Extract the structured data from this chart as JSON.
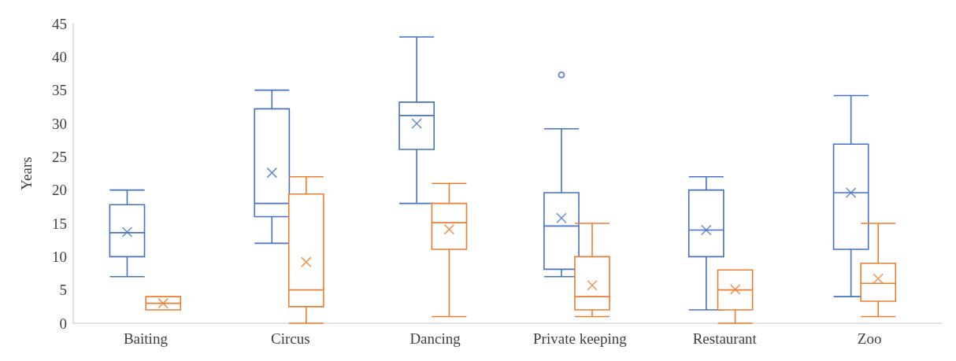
{
  "chart_data": {
    "type": "box",
    "ylabel": "Years",
    "categories": [
      "Baiting",
      "Circus",
      "Dancing",
      "Private keeping",
      "Restaurant",
      "Zoo"
    ],
    "ylim": [
      0,
      45
    ],
    "yticks": [
      0,
      5,
      10,
      15,
      20,
      25,
      30,
      35,
      40,
      45
    ],
    "grid": false,
    "series": [
      {
        "color": "#4472c4",
        "boxes": [
          {
            "low": 7,
            "q1": 10,
            "median": 13.6,
            "q3": 17.8,
            "high": 20,
            "mean": 13.7
          },
          {
            "low": 12,
            "q1": 16,
            "median": 18,
            "q3": 32.2,
            "high": 35,
            "mean": 22.6
          },
          {
            "low": 18,
            "q1": 26.1,
            "median": 31.2,
            "q3": 33.2,
            "high": 43,
            "mean": 30
          },
          {
            "low": 7,
            "q1": 8.1,
            "median": 14.6,
            "q3": 19.6,
            "high": 29.2,
            "mean": 15.8,
            "outliers": [
              37.3
            ]
          },
          {
            "low": 2,
            "q1": 10,
            "median": 14,
            "q3": 20,
            "high": 22,
            "mean": 14
          },
          {
            "low": 4,
            "q1": 11.1,
            "median": 19.6,
            "q3": 26.9,
            "high": 34.2,
            "mean": 19.6
          }
        ]
      },
      {
        "color": "#ed7d31",
        "boxes": [
          {
            "low": 2,
            "q1": 2,
            "median": 3,
            "q3": 4,
            "high": 4,
            "mean": 3
          },
          {
            "low": 0,
            "q1": 2.5,
            "median": 5,
            "q3": 19.4,
            "high": 22,
            "mean": 9.2
          },
          {
            "low": 1,
            "q1": 11.1,
            "median": 15.1,
            "q3": 18,
            "high": 21,
            "mean": 14.1
          },
          {
            "low": 1,
            "q1": 2,
            "median": 4,
            "q3": 10,
            "high": 15,
            "mean": 5.7
          },
          {
            "low": 0,
            "q1": 2,
            "median": 5,
            "q3": 8,
            "high": 8,
            "mean": 5.1
          },
          {
            "low": 1,
            "q1": 3.3,
            "median": 6,
            "q3": 9,
            "high": 15,
            "mean": 6.7
          }
        ]
      }
    ]
  }
}
